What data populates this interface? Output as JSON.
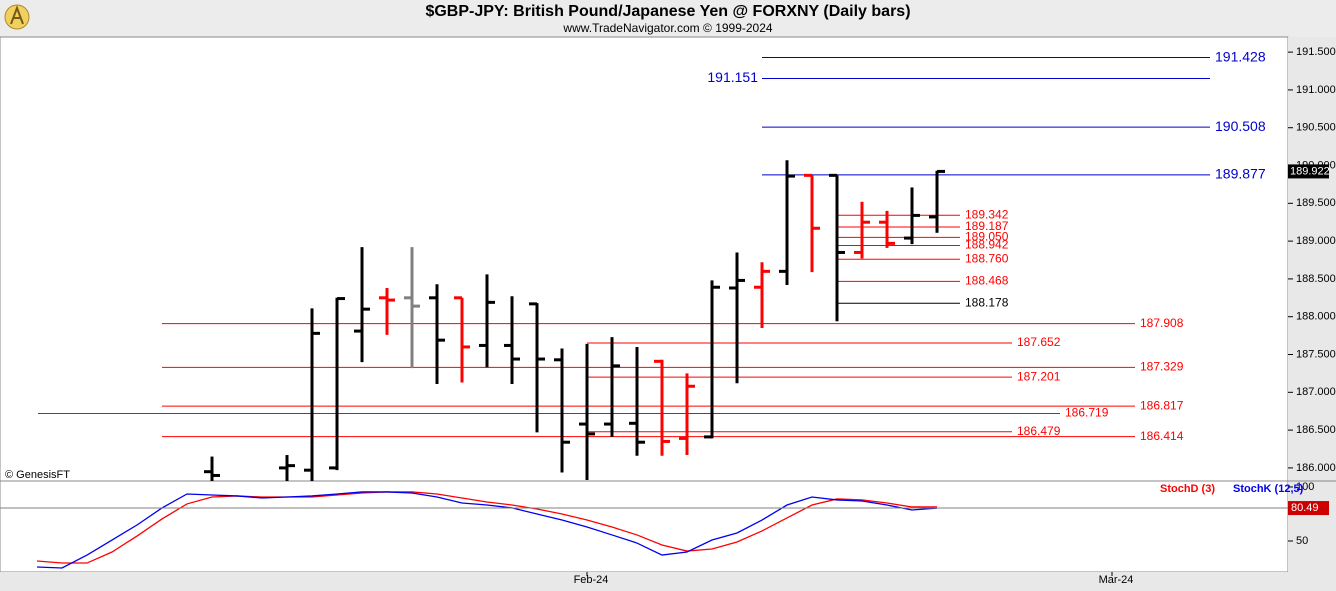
{
  "chart_data": [
    {
      "type": "ohlc",
      "title": "$GBP-JPY:  British Pound/Japanese Yen @ FORXNY  (Daily bars)",
      "subtitle": "www.TradeNavigator.com © 1999-2024",
      "annotation": "© GenesisFT",
      "ylim": [
        185.84,
        191.7
      ],
      "yticks": [
        {
          "value": 186,
          "label": "186.000"
        },
        {
          "value": 186.5,
          "label": "186.500"
        },
        {
          "value": 187,
          "label": "187.000"
        },
        {
          "value": 187.5,
          "label": "187.500"
        },
        {
          "value": 188,
          "label": "188.000"
        },
        {
          "value": 188.5,
          "label": "188.500"
        },
        {
          "value": 189,
          "label": "189.000"
        },
        {
          "value": 189.5,
          "label": "189.500"
        },
        {
          "value": 190,
          "label": "190.000"
        },
        {
          "value": 190.5,
          "label": "190.500"
        },
        {
          "value": 191,
          "label": "191.000"
        },
        {
          "value": 191.5,
          "label": "191.500"
        }
      ],
      "open": [
        null,
        null,
        null,
        null,
        null,
        null,
        null,
        null,
        185.95,
        null,
        null,
        186.0,
        185.97,
        186.0,
        187.81,
        188.25,
        188.25,
        188.25,
        188.25,
        187.62,
        187.62,
        188.17,
        187.43,
        186.58,
        186.58,
        186.59,
        187.41,
        186.39,
        186.41,
        188.38,
        188.39,
        188.6,
        189.87,
        189.87,
        188.85,
        189.25,
        189.04,
        189.32,
        null,
        null,
        null,
        null,
        null,
        null,
        null,
        null,
        null,
        null,
        null,
        null,
        null,
        null
      ],
      "high": [
        null,
        null,
        null,
        null,
        null,
        null,
        null,
        null,
        186.15,
        null,
        null,
        186.17,
        188.11,
        188.25,
        188.92,
        188.38,
        188.92,
        188.43,
        188.25,
        188.56,
        188.27,
        188.18,
        187.58,
        187.64,
        187.73,
        187.6,
        187.43,
        187.25,
        188.48,
        188.85,
        188.72,
        190.07,
        189.87,
        189.87,
        189.52,
        189.4,
        189.71,
        189.93,
        null,
        null,
        null,
        null,
        null,
        null,
        null,
        null,
        null,
        null,
        null,
        null,
        null,
        null
      ],
      "low": [
        null,
        null,
        null,
        null,
        null,
        null,
        null,
        null,
        185.8,
        null,
        null,
        185.8,
        185.8,
        185.97,
        187.4,
        187.76,
        187.32,
        187.11,
        187.13,
        187.33,
        187.11,
        186.47,
        185.94,
        185.84,
        186.41,
        186.16,
        186.16,
        186.17,
        186.39,
        187.12,
        187.85,
        188.42,
        188.59,
        187.94,
        188.77,
        188.91,
        188.96,
        189.11,
        null,
        null,
        null,
        null,
        null,
        null,
        null,
        null,
        null,
        null,
        null,
        null,
        null,
        null
      ],
      "close": [
        null,
        null,
        null,
        null,
        null,
        null,
        null,
        null,
        185.9,
        null,
        null,
        186.03,
        187.78,
        188.24,
        188.1,
        188.22,
        188.14,
        187.69,
        187.6,
        188.19,
        187.44,
        187.44,
        186.34,
        186.45,
        187.35,
        186.34,
        186.35,
        187.08,
        188.39,
        188.48,
        188.6,
        189.86,
        189.17,
        188.85,
        189.25,
        188.97,
        189.34,
        189.922,
        null,
        null,
        null,
        null,
        null,
        null,
        null,
        null,
        null,
        null,
        null,
        null,
        null,
        null
      ],
      "colors": [
        null,
        null,
        null,
        null,
        null,
        null,
        null,
        null,
        "#000000",
        null,
        null,
        "#000000",
        "#000000",
        "#000000",
        "#000000",
        "#ff0000",
        "#808080",
        "#000000",
        "#ff0000",
        "#000000",
        "#000000",
        "#000000",
        "#000000",
        "#000000",
        "#000000",
        "#000000",
        "#ff0000",
        "#ff0000",
        "#000000",
        "#000000",
        "#ff0000",
        "#000000",
        "#ff0000",
        "#000000",
        "#ff0000",
        "#ff0000",
        "#000000",
        "#000000",
        null,
        null,
        null,
        null,
        null,
        null,
        null,
        null,
        null,
        null,
        null,
        null,
        null,
        null
      ],
      "levels": [
        {
          "value": 191.428,
          "label": "191.428",
          "color": "#0000cc"
        },
        {
          "value": 191.151,
          "label": "191.151",
          "color": "#0000cc"
        },
        {
          "value": 190.508,
          "label": "190.508",
          "color": "#0000cc"
        },
        {
          "value": 189.877,
          "label": "189.877",
          "color": "#0000cc"
        },
        {
          "value": 189.342,
          "label": "189.342",
          "color": "#ff0000"
        },
        {
          "value": 189.187,
          "label": "189.187",
          "color": "#ff0000"
        },
        {
          "value": 189.05,
          "label": "189.050",
          "color": "#ff0000"
        },
        {
          "value": 188.942,
          "label": "188.942",
          "color": "#ff0000"
        },
        {
          "value": 188.76,
          "label": "188.760",
          "color": "#ff0000"
        },
        {
          "value": 188.468,
          "label": "188.468",
          "color": "#ff0000"
        },
        {
          "value": 188.178,
          "label": "188.178",
          "color": "#000000"
        },
        {
          "value": 187.908,
          "label": "187.908",
          "color": "#ff0000"
        },
        {
          "value": 187.652,
          "label": "187.652",
          "color": "#ff0000"
        },
        {
          "value": 187.329,
          "label": "187.329",
          "color": "#ff0000"
        },
        {
          "value": 187.201,
          "label": "187.201",
          "color": "#ff0000"
        },
        {
          "value": 186.817,
          "label": "186.817",
          "color": "#ff0000"
        },
        {
          "value": 186.719,
          "label": "186.719",
          "color": "#ff0000"
        },
        {
          "value": 186.479,
          "label": "186.479",
          "color": "#ff0000"
        },
        {
          "value": 186.414,
          "label": "186.414",
          "color": "#ff0000"
        }
      ]
    },
    {
      "type": "line",
      "categories": [
        null,
        null,
        null,
        null,
        null,
        null,
        null,
        null,
        null,
        null,
        null,
        null,
        null,
        null,
        null,
        null,
        null,
        null,
        null,
        null,
        null,
        null,
        null,
        "Feb-24",
        null,
        null,
        null,
        null,
        null,
        null,
        null,
        null,
        null,
        null,
        null,
        null,
        null,
        null,
        null,
        null,
        null,
        null,
        null,
        null,
        "Mar-24",
        null,
        null,
        null,
        null,
        null,
        null,
        null
      ],
      "ylim": [
        21.3,
        104.6
      ],
      "yticks": [
        50,
        100
      ],
      "series": [
        {
          "name": "StochD (3)",
          "color": "#ff0000",
          "values": [
            null,
            31.5,
            29.6,
            29.6,
            39.8,
            54.6,
            70.4,
            84.3,
            90.7,
            91.7,
            90.7,
            90.7,
            90.7,
            92.6,
            94.4,
            95.4,
            95.4,
            93.5,
            89.8,
            86.1,
            83.3,
            79.6,
            75.0,
            69.4,
            63.0,
            55.6,
            46.3,
            40.7,
            42.6,
            49.1,
            59.3,
            71.3,
            83.3,
            88.9,
            88.0,
            85.2,
            81.5,
            81.5,
            null,
            null,
            null,
            null,
            null,
            null,
            null,
            null,
            null,
            null,
            null,
            null,
            null,
            null
          ]
        },
        {
          "name": "StochK (12,5)",
          "color": "#0000ee",
          "values": [
            null,
            25.9,
            25.0,
            37.0,
            50.9,
            64.8,
            80.6,
            93.5,
            92.6,
            91.7,
            89.8,
            90.7,
            91.7,
            93.5,
            95.4,
            95.4,
            94.4,
            90.7,
            85.2,
            83.3,
            80.6,
            75.0,
            69.4,
            63.0,
            55.6,
            48.1,
            37.0,
            39.8,
            50.9,
            57.4,
            69.4,
            83.3,
            90.7,
            88.0,
            87.0,
            83.3,
            78.7,
            80.49,
            null,
            null,
            null,
            null,
            null,
            null,
            null,
            null,
            null,
            null,
            null,
            null,
            null,
            null
          ]
        }
      ]
    }
  ]
}
